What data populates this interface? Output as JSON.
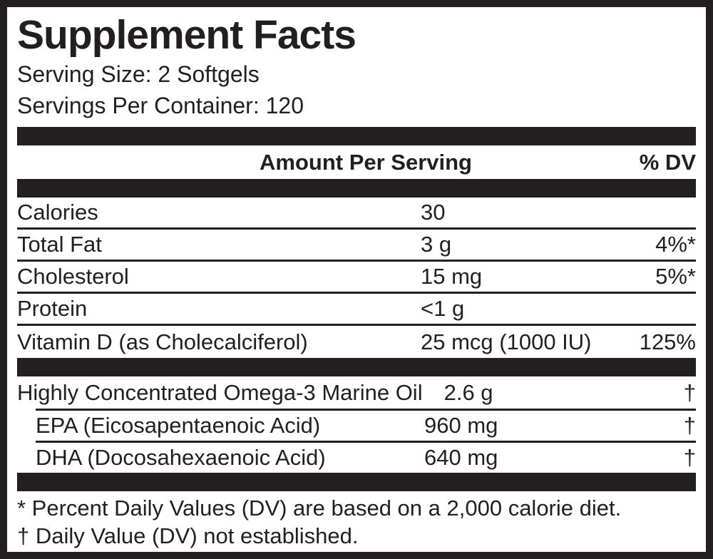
{
  "colors": {
    "ink": "#231f20",
    "paper": "#ffffff"
  },
  "header": {
    "title": "Supplement Facts",
    "serving_size": "Serving Size: 2 Softgels",
    "servings_per_container": "Servings Per Container: 120"
  },
  "columns": {
    "amount_head": "Amount Per Serving",
    "dv_head": "% DV"
  },
  "facts": [
    {
      "name": "Calories",
      "amount": "30",
      "dv": ""
    },
    {
      "name": "Total Fat",
      "amount": "3 g",
      "dv": "4%*"
    },
    {
      "name": "Cholesterol",
      "amount": "15 mg",
      "dv": "5%*"
    },
    {
      "name": "Protein",
      "amount": "<1 g",
      "dv": ""
    },
    {
      "name": "Vitamin D (as Cholecalciferol)",
      "amount": "25 mcg (1000 IU)",
      "dv": "125%"
    }
  ],
  "omega_section": [
    {
      "name": "Highly Concentrated Omega-3 Marine Oil",
      "amount": "2.6 g",
      "dv": "†"
    },
    {
      "name": "EPA (Eicosapentaenoic Acid)",
      "amount": "960 mg",
      "dv": "†"
    },
    {
      "name": "DHA (Docosahexaenoic Acid)",
      "amount": "640 mg",
      "dv": "†"
    }
  ],
  "footnotes": {
    "percent_dv": "* Percent Daily Values (DV) are based on a 2,000 calorie diet.",
    "not_established": "† Daily Value (DV) not established."
  }
}
